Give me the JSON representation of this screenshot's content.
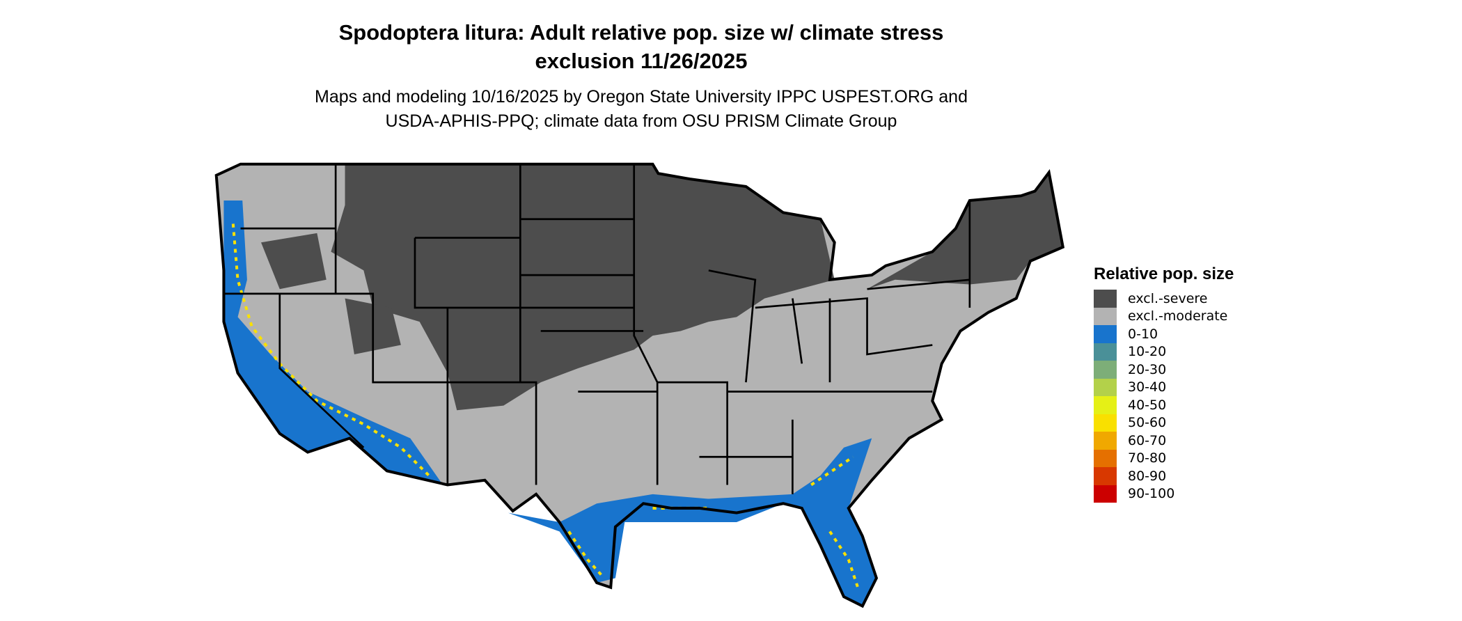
{
  "header": {
    "title_line1": "Spodoptera litura: Adult relative pop. size w/ climate stress",
    "title_line2": "exclusion 11/26/2025",
    "subtitle_line1": "Maps and modeling 10/16/2025 by Oregon State University IPPC USPEST.ORG and",
    "subtitle_line2": "USDA-APHIS-PPQ; climate data from OSU PRISM Climate Group"
  },
  "legend": {
    "title": "Relative pop. size",
    "items": [
      {
        "label": "excl.-severe",
        "color": "#4d4d4d"
      },
      {
        "label": "excl.-moderate",
        "color": "#b3b3b3"
      },
      {
        "label": "0-10",
        "color": "#1874cd"
      },
      {
        "label": "10-20",
        "color": "#4a9098"
      },
      {
        "label": "20-30",
        "color": "#7dae78"
      },
      {
        "label": "30-40",
        "color": "#b3d14a"
      },
      {
        "label": "40-50",
        "color": "#e5f016"
      },
      {
        "label": "50-60",
        "color": "#f9e000"
      },
      {
        "label": "60-70",
        "color": "#f0a800"
      },
      {
        "label": "70-80",
        "color": "#e57000"
      },
      {
        "label": "80-90",
        "color": "#d83800"
      },
      {
        "label": "90-100",
        "color": "#cc0000"
      }
    ]
  }
}
